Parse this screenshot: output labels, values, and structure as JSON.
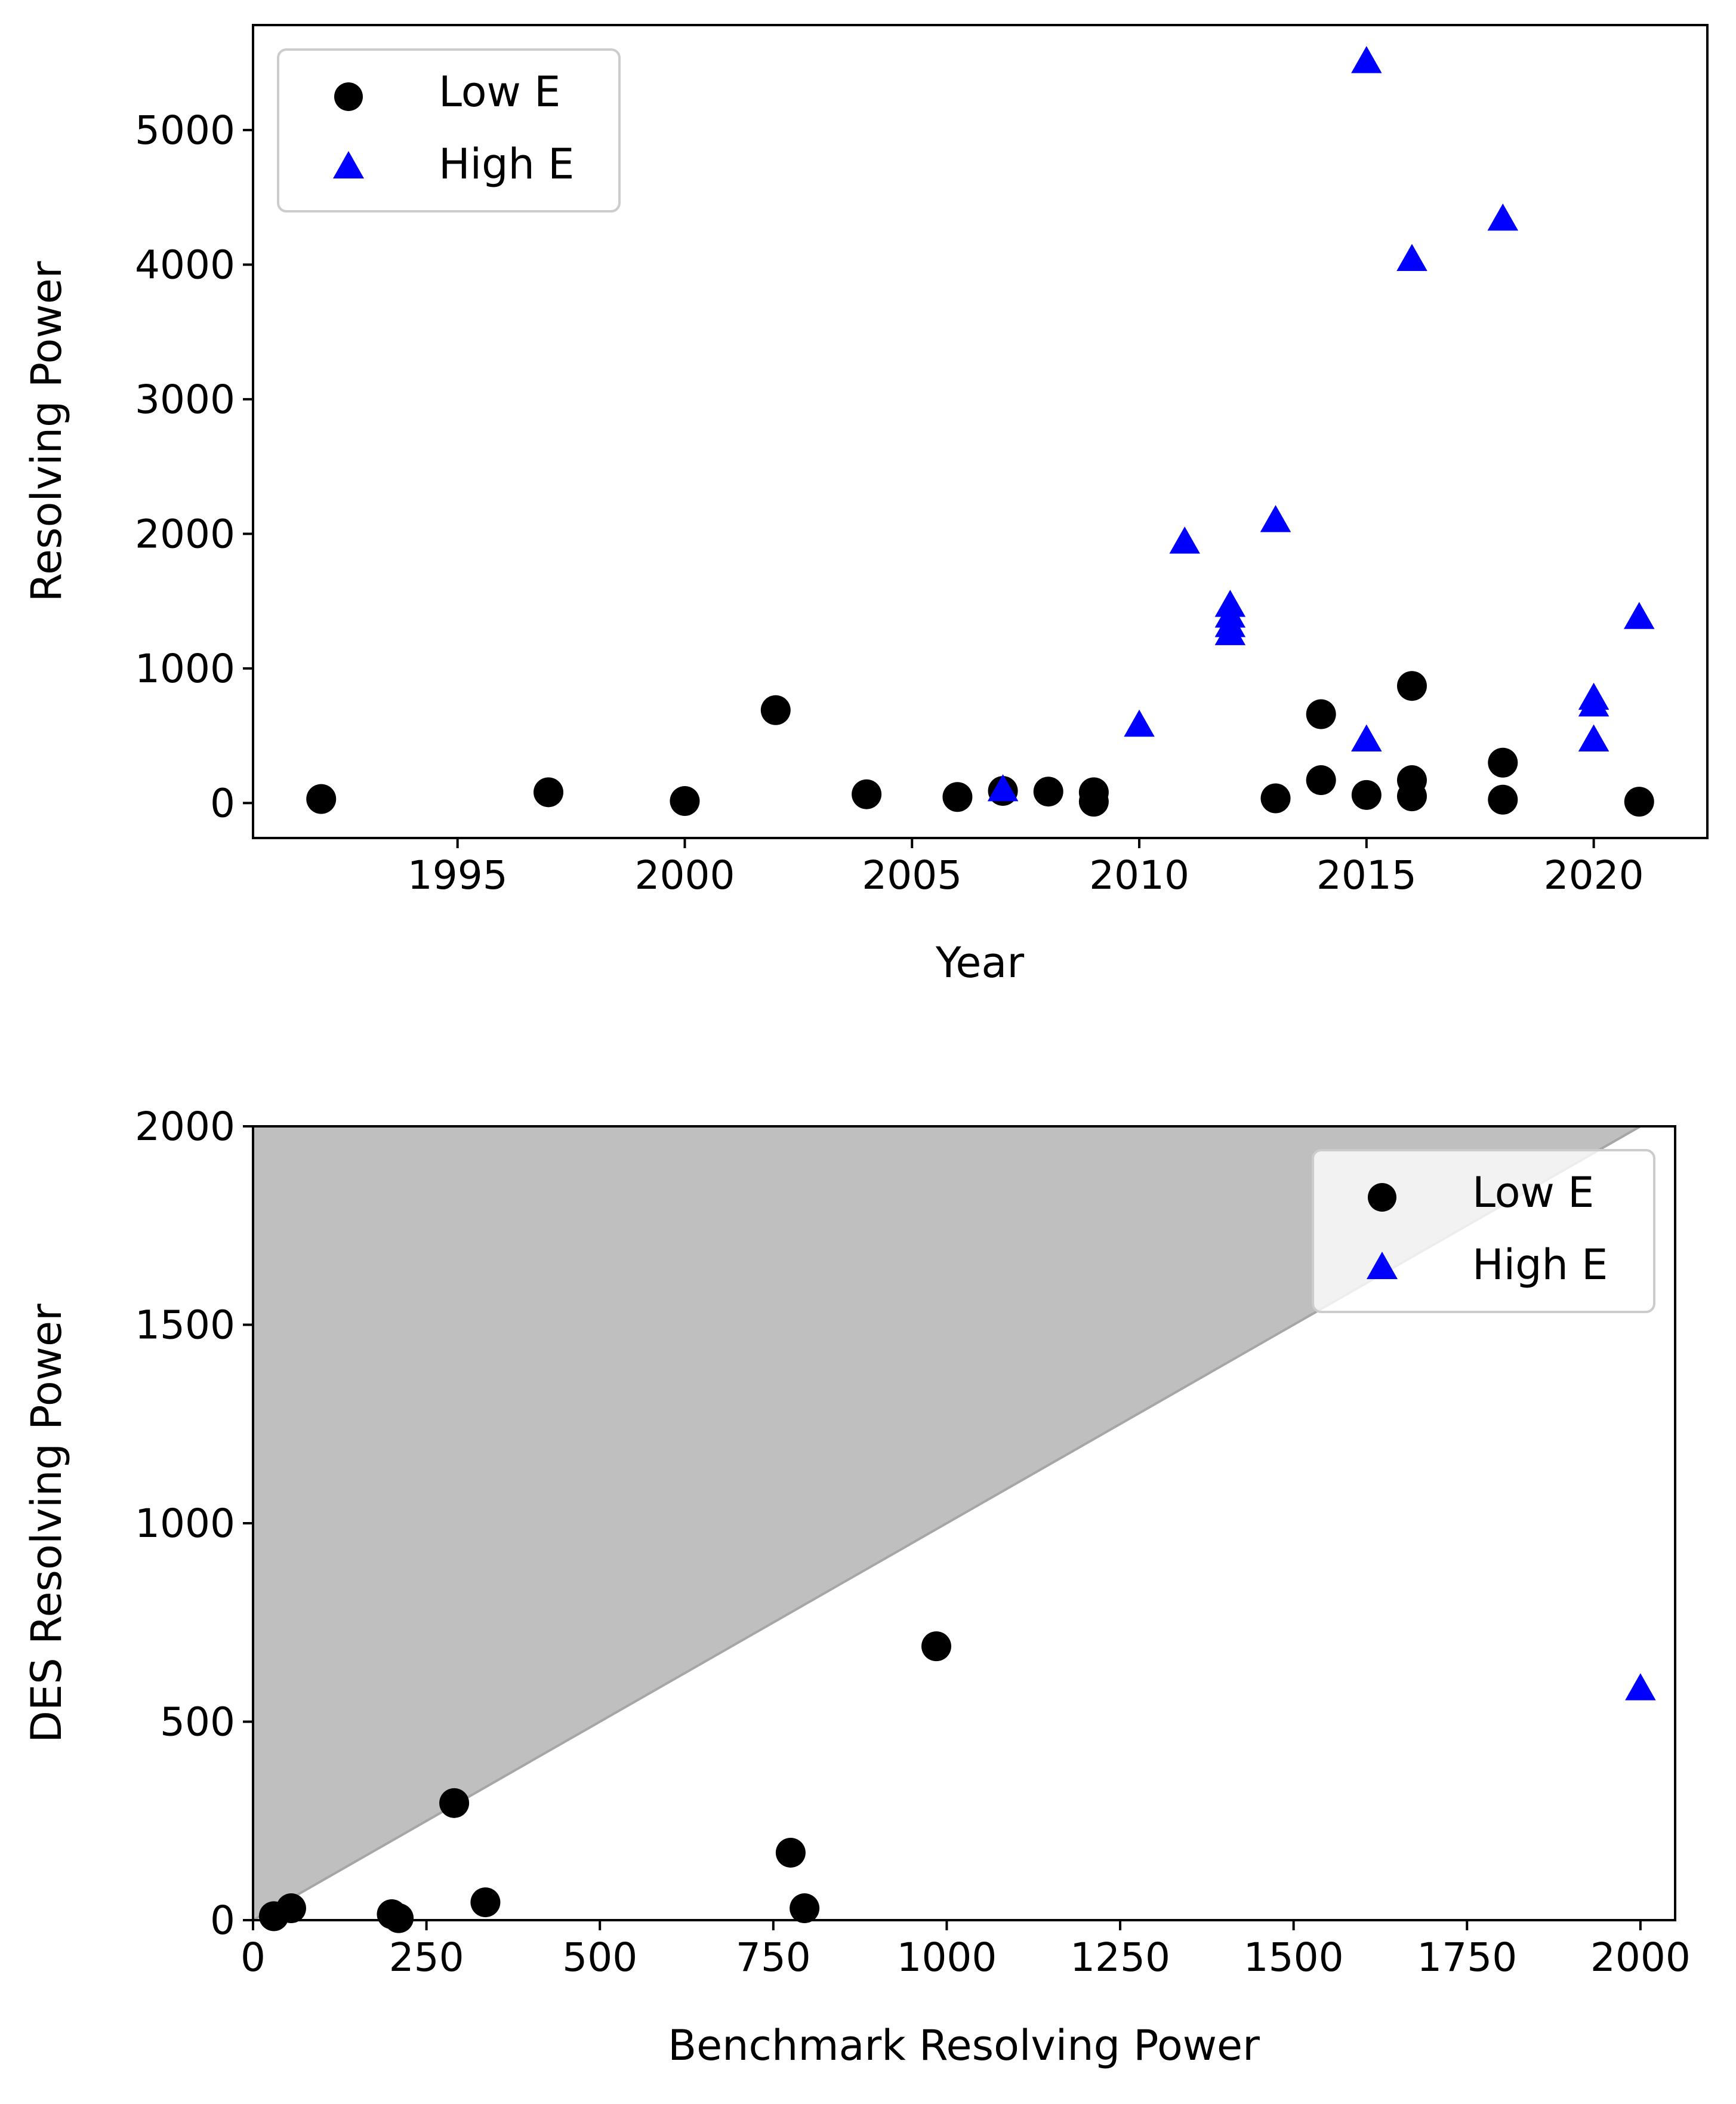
{
  "chart_data": [
    {
      "type": "scatter",
      "xlabel": "Year",
      "ylabel": "Resolving Power",
      "xlim": [
        1990.5,
        2022.5
      ],
      "ylim": [
        -260,
        5780
      ],
      "xticks": [
        1995,
        2000,
        2005,
        2010,
        2015,
        2020
      ],
      "yticks": [
        0,
        1000,
        2000,
        3000,
        4000,
        5000
      ],
      "legend_position": "upper-left",
      "series": [
        {
          "name": "Low E",
          "marker": "circle",
          "color": "#000000",
          "points": [
            [
              1992,
              30
            ],
            [
              1997,
              80
            ],
            [
              2000,
              15
            ],
            [
              2002,
              690
            ],
            [
              2004,
              65
            ],
            [
              2006,
              45
            ],
            [
              2007,
              90
            ],
            [
              2008,
              85
            ],
            [
              2009,
              80
            ],
            [
              2009,
              10
            ],
            [
              2013,
              35
            ],
            [
              2014,
              660
            ],
            [
              2014,
              170
            ],
            [
              2015,
              60
            ],
            [
              2016,
              870
            ],
            [
              2016,
              170
            ],
            [
              2016,
              50
            ],
            [
              2018,
              300
            ],
            [
              2018,
              25
            ],
            [
              2021,
              10
            ]
          ]
        },
        {
          "name": "High E",
          "marker": "triangle",
          "color": "#0000ff",
          "points": [
            [
              2007,
              90
            ],
            [
              2010,
              570
            ],
            [
              2011,
              1930
            ],
            [
              2012,
              1460
            ],
            [
              2012,
              1380
            ],
            [
              2012,
              1310
            ],
            [
              2012,
              1250
            ],
            [
              2013,
              2090
            ],
            [
              2015,
              5500
            ],
            [
              2015,
              460
            ],
            [
              2016,
              4030
            ],
            [
              2018,
              4330
            ],
            [
              2020,
              770
            ],
            [
              2020,
              720
            ],
            [
              2020,
              460
            ],
            [
              2021,
              1370
            ]
          ]
        }
      ]
    },
    {
      "type": "scatter",
      "xlabel": "Benchmark Resolving Power",
      "ylabel": "DES Resolving Power",
      "xlim": [
        0,
        2050
      ],
      "ylim": [
        0,
        2000
      ],
      "xticks": [
        0,
        250,
        500,
        750,
        1000,
        1250,
        1500,
        1750,
        2000
      ],
      "yticks": [
        0,
        500,
        1000,
        1500,
        2000
      ],
      "legend_position": "upper-right",
      "shaded_region": "above y = x",
      "diagonal_line": "y = x",
      "series": [
        {
          "name": "Low E",
          "marker": "circle",
          "color": "#000000",
          "points": [
            [
              30,
              10
            ],
            [
              55,
              30
            ],
            [
              200,
              15
            ],
            [
              210,
              5
            ],
            [
              290,
              295
            ],
            [
              335,
              45
            ],
            [
              775,
              170
            ],
            [
              795,
              30
            ],
            [
              985,
              690
            ]
          ]
        },
        {
          "name": "High E",
          "marker": "triangle",
          "color": "#0000ff",
          "points": [
            [
              2000,
              580
            ]
          ]
        }
      ]
    }
  ]
}
